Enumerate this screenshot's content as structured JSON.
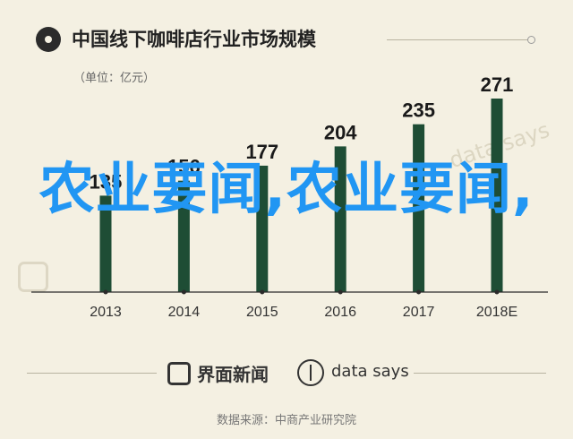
{
  "header": {
    "title": "中国线下咖啡店行业市场规模",
    "unit": "（单位：亿元）"
  },
  "chart_data": {
    "type": "bar",
    "title": "中国线下咖啡店行业市场规模",
    "unit": "亿元",
    "categories": [
      "2013",
      "2014",
      "2015",
      "2016",
      "2017",
      "2018E"
    ],
    "values": [
      135,
      156,
      177,
      204,
      235,
      271
    ],
    "ylim": [
      0,
      271
    ],
    "grid": false,
    "legend": "none",
    "bar_color": "#1e4d35",
    "axis_color": "#2b2b2b"
  },
  "overlay": {
    "text": "农业要闻,农业要闻,"
  },
  "footer": {
    "brand": "界面新闻",
    "partner": "data says",
    "source": "数据来源：中商产业研究院"
  },
  "watermark": {
    "text": "data says",
    "icon": "jiemian-logo-icon"
  }
}
